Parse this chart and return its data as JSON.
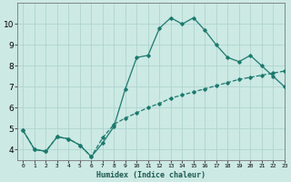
{
  "title": "",
  "xlabel": "Humidex (Indice chaleur)",
  "ylabel": "",
  "bg_color": "#cce9e4",
  "grid_color": "#b0d4ce",
  "line_color": "#1a7a6e",
  "line1_x": [
    0,
    1,
    2,
    3,
    4,
    5,
    6,
    7,
    8,
    9,
    10,
    11,
    12,
    13,
    14,
    15,
    16,
    17,
    18,
    19,
    20,
    21,
    22,
    23
  ],
  "line1_y": [
    4.9,
    4.0,
    3.9,
    4.6,
    4.5,
    4.2,
    3.65,
    4.3,
    5.1,
    6.9,
    8.4,
    8.5,
    9.8,
    10.3,
    10.0,
    10.3,
    9.7,
    9.0,
    8.4,
    8.2,
    8.5,
    8.0,
    7.5,
    7.0
  ],
  "line2_x": [
    0,
    1,
    2,
    3,
    4,
    5,
    6,
    7,
    8,
    9,
    10,
    11,
    12,
    13,
    14,
    15,
    16,
    17,
    18,
    19,
    20,
    21,
    22,
    23
  ],
  "line2_y": [
    4.9,
    4.0,
    3.9,
    4.6,
    4.5,
    4.2,
    3.65,
    4.55,
    5.2,
    5.5,
    5.75,
    6.0,
    6.2,
    6.45,
    6.6,
    6.75,
    6.9,
    7.05,
    7.2,
    7.35,
    7.45,
    7.55,
    7.65,
    7.75
  ],
  "ylim": [
    3.5,
    11.0
  ],
  "xlim": [
    -0.5,
    23
  ],
  "yticks": [
    4,
    5,
    6,
    7,
    8,
    9,
    10
  ],
  "xticks": [
    0,
    1,
    2,
    3,
    4,
    5,
    6,
    7,
    8,
    9,
    10,
    11,
    12,
    13,
    14,
    15,
    16,
    17,
    18,
    19,
    20,
    21,
    22,
    23
  ]
}
